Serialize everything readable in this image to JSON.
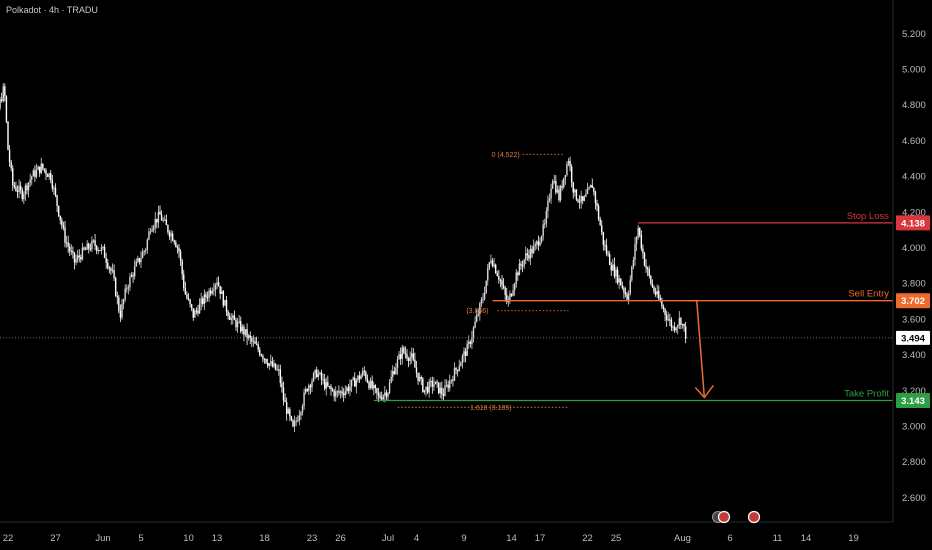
{
  "header": {
    "title": "Polkadot · 4h · TRADU"
  },
  "colors": {
    "background": "#000000",
    "candle_up": "#d8d8d8",
    "candle_down": "#ffffff",
    "stop_loss": "#d9363e",
    "sell_entry": "#ef6a2e",
    "take_profit": "#2e9e44",
    "fib": "#e07a3a",
    "grid_axis": "#2a2a2a",
    "current_price_bg": "#ffffff"
  },
  "chart_data": {
    "type": "candlestick",
    "ylim": [
      2.45,
      5.3
    ],
    "y_ticks": [
      "5.200",
      "5.000",
      "4.800",
      "4.600",
      "4.400",
      "4.200",
      "4.000",
      "3.800",
      "3.600",
      "3.400",
      "3.200",
      "3.000",
      "2.800",
      "2.600"
    ],
    "y_tick_values": [
      5.2,
      5.0,
      4.8,
      4.6,
      4.4,
      4.2,
      4.0,
      3.8,
      3.6,
      3.4,
      3.2,
      3.0,
      2.8,
      2.6
    ],
    "x_ticks": [
      "22",
      "27",
      "Jun",
      "5",
      "10",
      "13",
      "18",
      "23",
      "26",
      "Jul",
      "4",
      "9",
      "14",
      "17",
      "22",
      "25",
      "Aug",
      "6",
      "11",
      "14",
      "19"
    ],
    "x_tick_days": [
      22,
      27,
      32,
      36,
      41,
      44,
      49,
      54,
      57,
      62,
      65,
      70,
      75,
      78,
      83,
      86,
      93,
      98,
      103,
      106,
      111
    ],
    "price_path": [
      [
        19.0,
        4.65
      ],
      [
        20.0,
        4.72
      ],
      [
        21.0,
        4.78
      ],
      [
        21.6,
        4.9
      ],
      [
        22.0,
        4.55
      ],
      [
        22.5,
        4.35
      ],
      [
        23.5,
        4.3
      ],
      [
        24.5,
        4.4
      ],
      [
        25.5,
        4.45
      ],
      [
        26.5,
        4.4
      ],
      [
        27.0,
        4.28
      ],
      [
        28.0,
        4.05
      ],
      [
        29.0,
        3.92
      ],
      [
        30.0,
        3.98
      ],
      [
        31.0,
        4.02
      ],
      [
        32.0,
        3.98
      ],
      [
        33.0,
        3.85
      ],
      [
        33.8,
        3.62
      ],
      [
        34.5,
        3.78
      ],
      [
        35.5,
        3.9
      ],
      [
        36.5,
        4.0
      ],
      [
        37.0,
        4.12
      ],
      [
        38.0,
        4.18
      ],
      [
        38.6,
        4.12
      ],
      [
        39.5,
        4.05
      ],
      [
        40.0,
        3.98
      ],
      [
        40.6,
        3.75
      ],
      [
        41.5,
        3.62
      ],
      [
        42.5,
        3.7
      ],
      [
        43.5,
        3.78
      ],
      [
        44.0,
        3.82
      ],
      [
        44.8,
        3.68
      ],
      [
        45.5,
        3.6
      ],
      [
        46.5,
        3.55
      ],
      [
        47.5,
        3.48
      ],
      [
        48.5,
        3.42
      ],
      [
        49.5,
        3.35
      ],
      [
        50.5,
        3.3
      ],
      [
        51.0,
        3.15
      ],
      [
        52.0,
        2.98
      ],
      [
        52.8,
        3.1
      ],
      [
        53.5,
        3.22
      ],
      [
        54.5,
        3.3
      ],
      [
        55.5,
        3.22
      ],
      [
        56.5,
        3.18
      ],
      [
        57.5,
        3.2
      ],
      [
        58.5,
        3.25
      ],
      [
        59.5,
        3.3
      ],
      [
        60.0,
        3.24
      ],
      [
        61.0,
        3.16
      ],
      [
        62.0,
        3.2
      ],
      [
        62.5,
        3.3
      ],
      [
        63.5,
        3.42
      ],
      [
        64.5,
        3.38
      ],
      [
        65.0,
        3.3
      ],
      [
        65.8,
        3.2
      ],
      [
        66.8,
        3.24
      ],
      [
        67.8,
        3.18
      ],
      [
        68.5,
        3.25
      ],
      [
        69.5,
        3.35
      ],
      [
        70.5,
        3.45
      ],
      [
        71.3,
        3.6
      ],
      [
        72.0,
        3.72
      ],
      [
        72.8,
        3.95
      ],
      [
        73.8,
        3.82
      ],
      [
        74.6,
        3.68
      ],
      [
        75.5,
        3.85
      ],
      [
        76.5,
        3.95
      ],
      [
        77.5,
        4.0
      ],
      [
        78.5,
        4.12
      ],
      [
        79.3,
        4.4
      ],
      [
        80.0,
        4.28
      ],
      [
        80.6,
        4.42
      ],
      [
        81.0,
        4.5
      ],
      [
        81.6,
        4.3
      ],
      [
        82.5,
        4.25
      ],
      [
        83.5,
        4.35
      ],
      [
        84.0,
        4.22
      ],
      [
        84.7,
        4.02
      ],
      [
        85.5,
        3.9
      ],
      [
        86.5,
        3.8
      ],
      [
        87.2,
        3.72
      ],
      [
        87.8,
        3.92
      ],
      [
        88.3,
        4.12
      ],
      [
        89.0,
        3.92
      ],
      [
        89.8,
        3.78
      ],
      [
        90.6,
        3.7
      ],
      [
        91.3,
        3.62
      ],
      [
        92.0,
        3.55
      ],
      [
        92.8,
        3.6
      ],
      [
        93.4,
        3.5
      ]
    ],
    "current_price": 3.494,
    "current_price_label": "3.494",
    "fib_levels": [
      {
        "label": "0 (4.522)",
        "value": 4.522
      },
      {
        "label": "(3.646)",
        "value": 3.646
      },
      {
        "label": "1.618 (3.105)",
        "value": 3.105
      }
    ],
    "levels": [
      {
        "name": "Stop Loss",
        "value": 4.138,
        "badge": "4.138",
        "color": "#d9363e",
        "start_day": 88.3
      },
      {
        "name": "Sell Entry",
        "value": 3.702,
        "badge": "3.702",
        "color": "#ef6a2e",
        "start_day": 73.0
      },
      {
        "name": "Take Profit",
        "value": 3.143,
        "badge": "3.143",
        "color": "#2e9e44",
        "start_day": 60.5
      }
    ],
    "projection": {
      "from_day": 94.5,
      "from_value": 3.702,
      "to_day": 95.3,
      "to_value": 3.16
    },
    "grid": false
  }
}
